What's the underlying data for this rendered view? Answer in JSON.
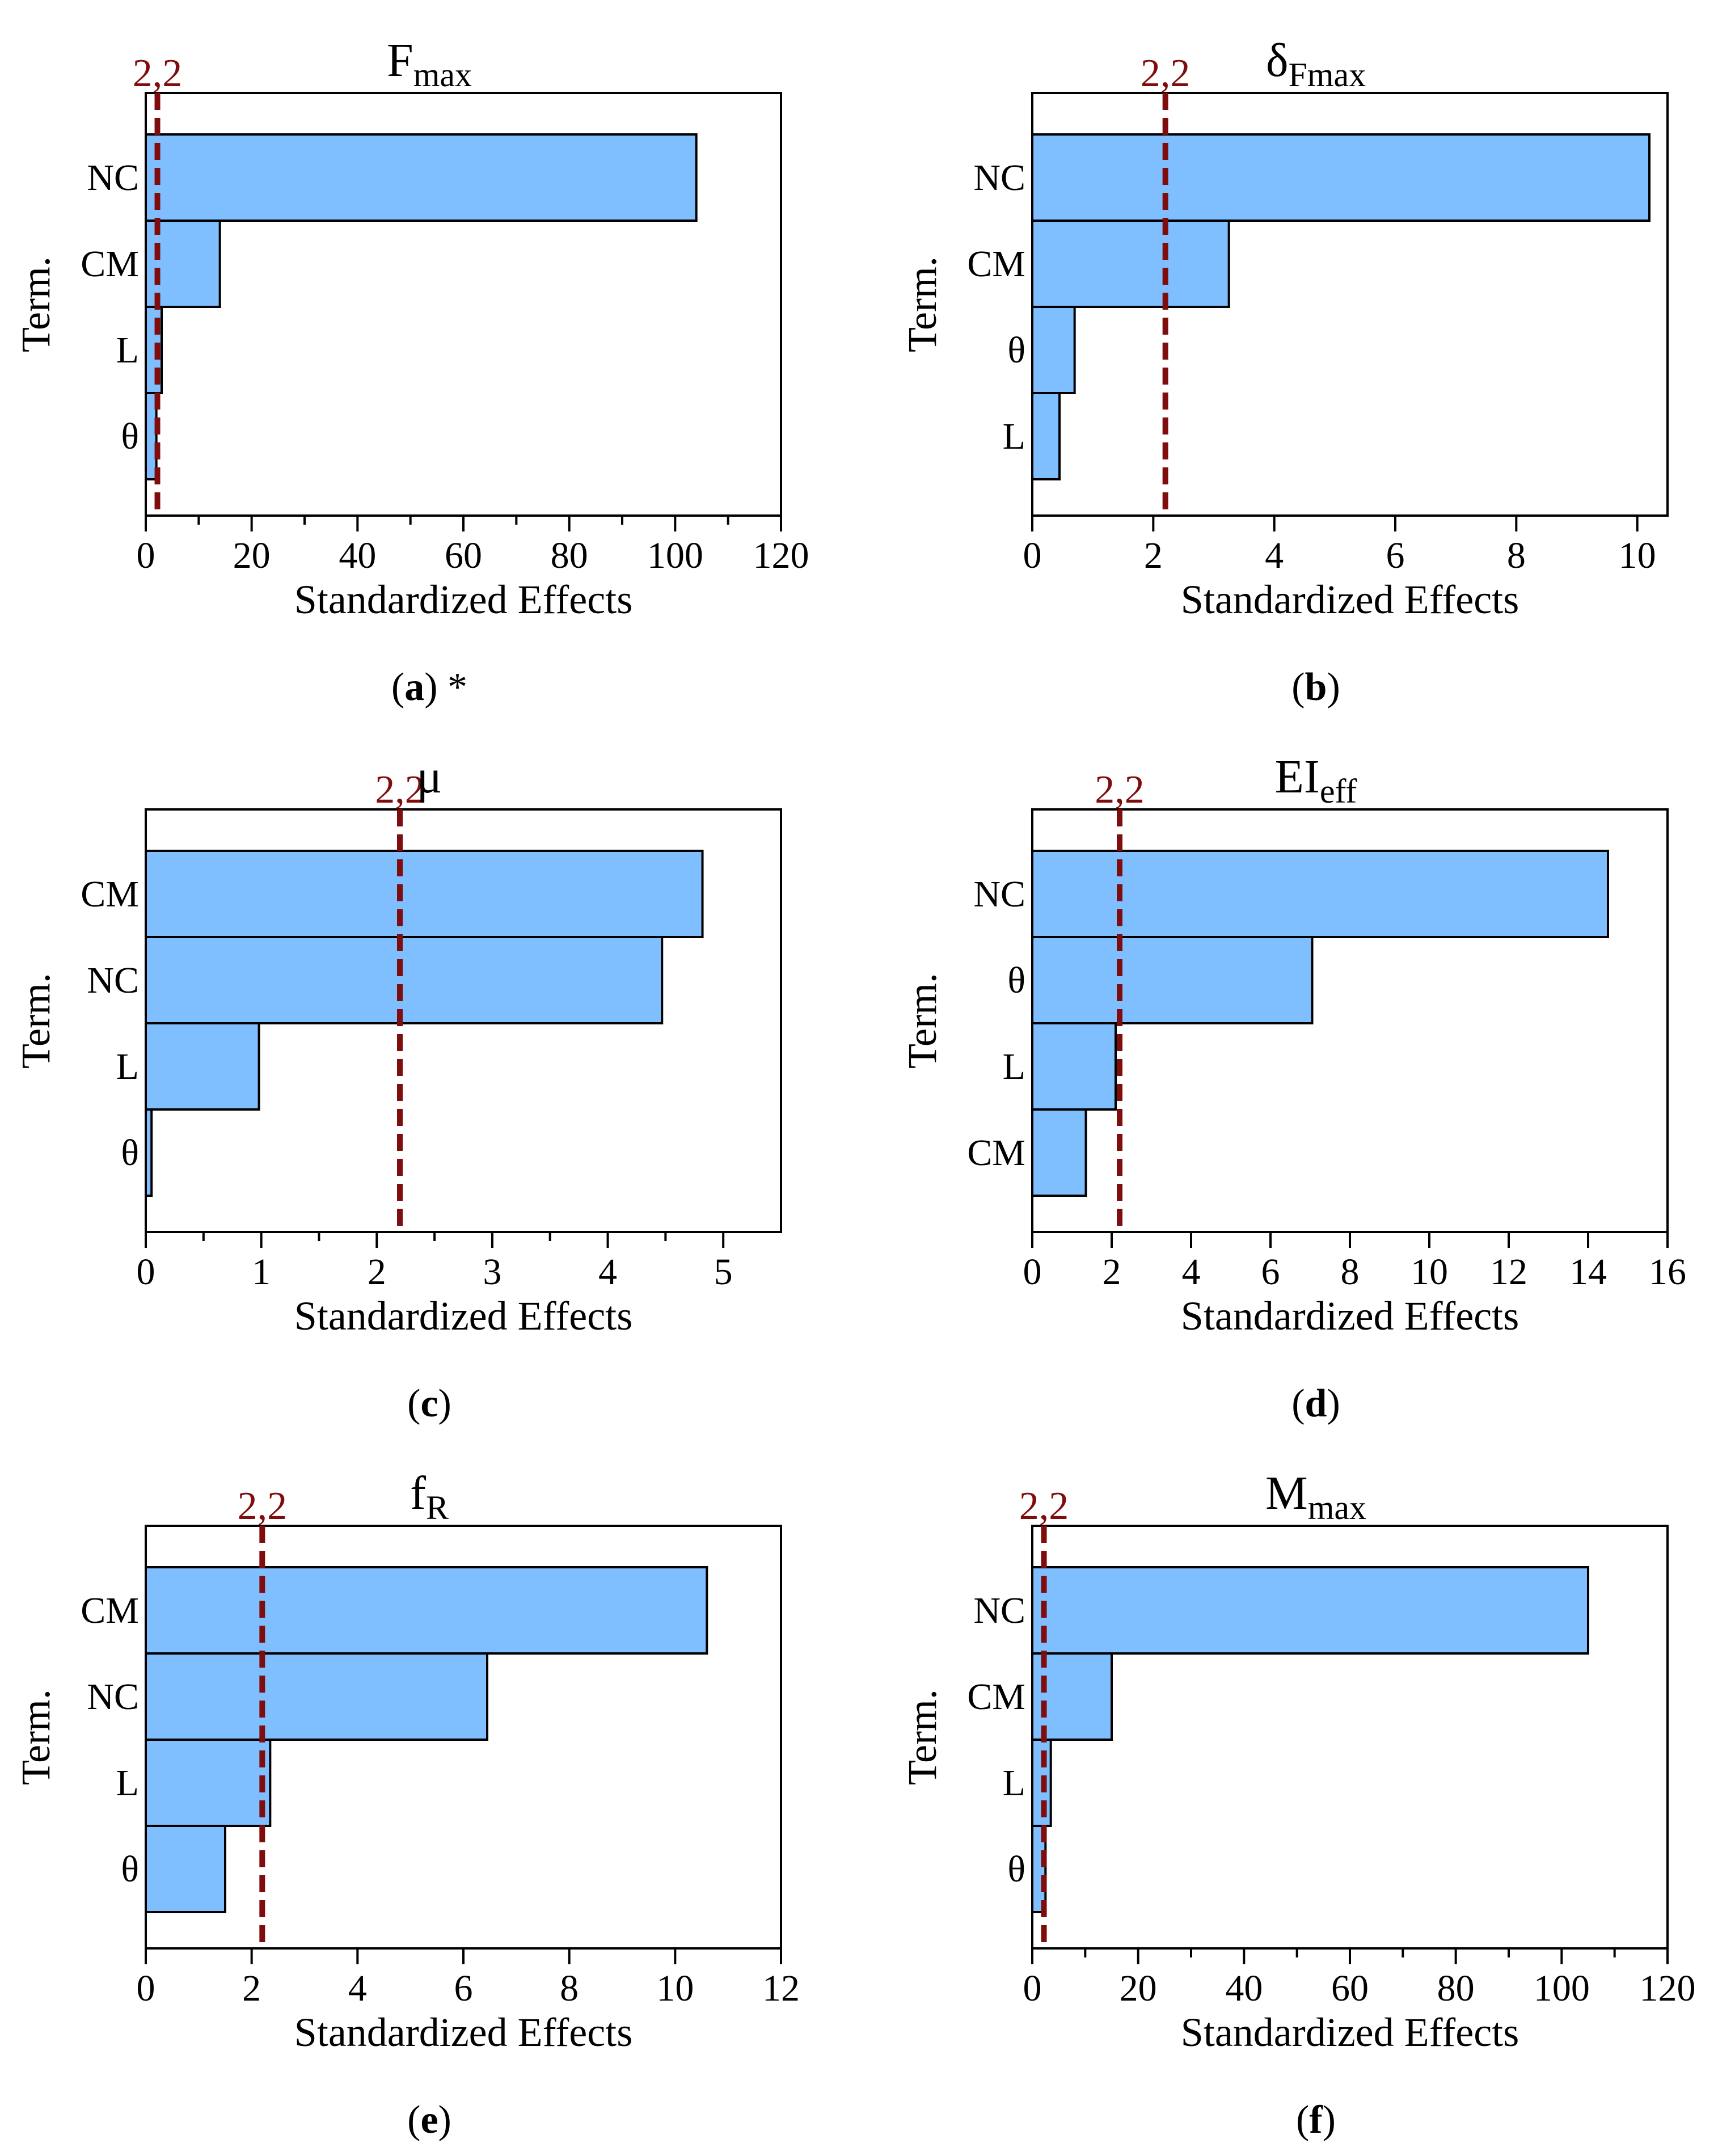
{
  "figure": {
    "colors": {
      "bar_fill": "#80bfff",
      "bar_stroke": "#000000",
      "threshold": "#7f0d0d",
      "axis": "#000000",
      "text": "#000000"
    },
    "threshold_value": 2.2,
    "threshold_label": "2,2",
    "ylabel": "Term.",
    "xlabel": "Standardized Effects"
  },
  "chart_data": [
    {
      "type": "bar",
      "orientation": "horizontal",
      "title": {
        "main": "F",
        "sub": "max"
      },
      "caption": {
        "letter": "a",
        "suffix": " *"
      },
      "categories": [
        "NC",
        "CM",
        "L",
        "θ"
      ],
      "values": [
        104,
        14,
        3,
        2
      ],
      "xlim": [
        0,
        120
      ],
      "xticks": [
        "0",
        "20",
        "40",
        "60",
        "80",
        "100",
        "120"
      ],
      "minor_ticks": true,
      "threshold": 2.2,
      "threshold_label": "2,2",
      "xlabel": "Standardized Effects",
      "ylabel": "Term."
    },
    {
      "type": "bar",
      "orientation": "horizontal",
      "title": {
        "main": "δ",
        "sub": "Fmax"
      },
      "caption": {
        "letter": "b",
        "suffix": ""
      },
      "categories": [
        "NC",
        "CM",
        "θ",
        "L"
      ],
      "values": [
        10.2,
        3.25,
        0.7,
        0.45
      ],
      "xlim": [
        0,
        10.5
      ],
      "xticks": [
        "0",
        "2",
        "4",
        "6",
        "8",
        "10"
      ],
      "minor_ticks": false,
      "threshold": 2.2,
      "threshold_label": "2,2",
      "xlabel": "Standardized Effects",
      "ylabel": "Term."
    },
    {
      "type": "bar",
      "orientation": "horizontal",
      "title": {
        "main": "μ",
        "sub": ""
      },
      "caption": {
        "letter": "c",
        "suffix": ""
      },
      "categories": [
        "CM",
        "NC",
        "L",
        "θ"
      ],
      "values": [
        4.82,
        4.47,
        0.98,
        0.05
      ],
      "xlim": [
        0,
        5.5
      ],
      "xticks": [
        "0",
        "1",
        "2",
        "3",
        "4",
        "5"
      ],
      "minor_ticks": true,
      "threshold": 2.2,
      "threshold_label": "2,2",
      "xlabel": "Standardized Effects",
      "ylabel": "Term."
    },
    {
      "type": "bar",
      "orientation": "horizontal",
      "title": {
        "main": "EI",
        "sub": "eff"
      },
      "caption": {
        "letter": "d",
        "suffix": ""
      },
      "categories": [
        "NC",
        "θ",
        "L",
        "CM"
      ],
      "values": [
        14.5,
        7.05,
        2.1,
        1.35
      ],
      "xlim": [
        0,
        16
      ],
      "xticks": [
        "0",
        "2",
        "4",
        "6",
        "8",
        "10",
        "12",
        "14",
        "16"
      ],
      "minor_ticks": false,
      "threshold": 2.2,
      "threshold_label": "2,2",
      "xlabel": "Standardized Effects",
      "ylabel": "Term."
    },
    {
      "type": "bar",
      "orientation": "horizontal",
      "title": {
        "main": "f",
        "sub": "R"
      },
      "caption": {
        "letter": "e",
        "suffix": ""
      },
      "categories": [
        "CM",
        "NC",
        "L",
        "θ"
      ],
      "values": [
        10.6,
        6.45,
        2.35,
        1.5
      ],
      "xlim": [
        0,
        12
      ],
      "xticks": [
        "0",
        "2",
        "4",
        "6",
        "8",
        "10",
        "12"
      ],
      "minor_ticks": false,
      "threshold": 2.2,
      "threshold_label": "2,2",
      "xlabel": "Standardized Effects",
      "ylabel": "Term."
    },
    {
      "type": "bar",
      "orientation": "horizontal",
      "title": {
        "main": "M",
        "sub": "max"
      },
      "caption": {
        "letter": "f",
        "suffix": ""
      },
      "categories": [
        "NC",
        "CM",
        "L",
        "θ"
      ],
      "values": [
        105,
        15,
        3.5,
        2.5
      ],
      "xlim": [
        0,
        120
      ],
      "xticks": [
        "0",
        "20",
        "40",
        "60",
        "80",
        "100",
        "120"
      ],
      "minor_ticks": true,
      "threshold": 2.2,
      "threshold_label": "2,2",
      "xlabel": "Standardized Effects",
      "ylabel": "Term."
    }
  ]
}
